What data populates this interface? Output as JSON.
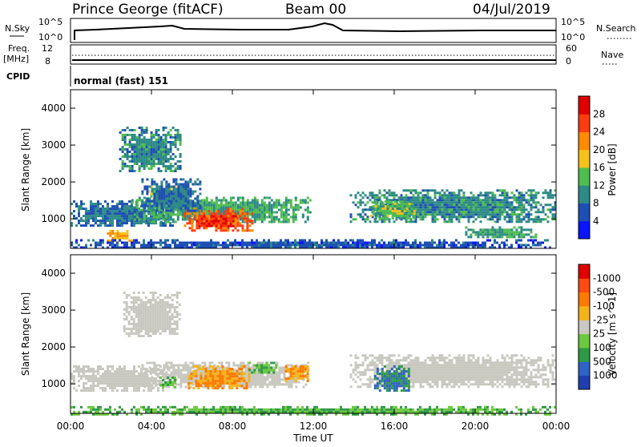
{
  "header": {
    "title": "Prince George (fitACF)",
    "beam": "Beam 00",
    "date": "04/Jul/2019"
  },
  "top_panels": {
    "nsky_label": "N.Sky",
    "nsky_ticks": [
      "10^5",
      "10^0"
    ],
    "nsearch_label": "N.Search",
    "freq_label_1": "Freq.",
    "freq_label_2": "[MHz]",
    "freq_ticks": [
      "12",
      "8"
    ],
    "nave_label": "Nave",
    "nave_ticks": [
      "60",
      "0"
    ],
    "cpid_label": "CPID",
    "cpid_value": "normal (fast) 151"
  },
  "x_axis": {
    "label": "Time UT",
    "ticks": [
      "00:00",
      "04:00",
      "08:00",
      "12:00",
      "16:00",
      "20:00",
      "00:00"
    ]
  },
  "chart_data": [
    {
      "type": "heatmap",
      "title": "",
      "xlabel": "Time UT",
      "ylabel": "Slant Range [km]",
      "x_range_hours": [
        0,
        24
      ],
      "ylim": [
        200,
        4500
      ],
      "y_ticks": [
        1000,
        2000,
        3000,
        4000
      ],
      "colorbar": {
        "label": "Power [dB]",
        "ticks": [
          4,
          8,
          12,
          16,
          20,
          24,
          28
        ],
        "colors": [
          "#0a14ff",
          "#1e4fb4",
          "#2d8a86",
          "#4fbd4f",
          "#f5c21b",
          "#ff8a00",
          "#ff3b10",
          "#e10000"
        ]
      },
      "regions": [
        {
          "t0": 0.0,
          "t1": 5.0,
          "r0": 800,
          "r1": 1500,
          "value": 8
        },
        {
          "t0": 3.0,
          "t1": 11.8,
          "r0": 900,
          "r1": 1600,
          "value": 12
        },
        {
          "t0": 5.6,
          "t1": 9.0,
          "r0": 700,
          "r1": 1300,
          "value": 24
        },
        {
          "t0": 6.2,
          "t1": 8.2,
          "r0": 800,
          "r1": 1100,
          "value": 28
        },
        {
          "t0": 3.7,
          "t1": 5.8,
          "r0": 1500,
          "r1": 1900,
          "value": 16
        },
        {
          "t0": 2.4,
          "t1": 5.4,
          "r0": 2300,
          "r1": 3500,
          "value": 10
        },
        {
          "t0": 3.5,
          "t1": 6.4,
          "r0": 1200,
          "r1": 2100,
          "value": 8
        },
        {
          "t0": 1.8,
          "t1": 3.0,
          "r0": 400,
          "r1": 700,
          "value": 20
        },
        {
          "t0": 13.8,
          "t1": 24.0,
          "r0": 900,
          "r1": 1800,
          "value": 10
        },
        {
          "t0": 14.8,
          "t1": 17.0,
          "r0": 1000,
          "r1": 1500,
          "value": 14
        },
        {
          "t0": 19.5,
          "t1": 23.0,
          "r0": 500,
          "r1": 800,
          "value": 12
        },
        {
          "t0": 0.0,
          "t1": 24.0,
          "r0": 200,
          "r1": 450,
          "value": 6
        }
      ]
    },
    {
      "type": "heatmap",
      "title": "",
      "xlabel": "Time UT",
      "ylabel": "Slant Range [km]",
      "x_range_hours": [
        0,
        24
      ],
      "ylim": [
        200,
        4500
      ],
      "y_ticks": [
        1000,
        2000,
        3000,
        4000
      ],
      "colorbar": {
        "label": "Velocity [m s^-1]",
        "ticks": [
          1000,
          500,
          100,
          25,
          -25,
          -100,
          -500,
          -1000
        ],
        "colors": [
          "#1f3fb0",
          "#2f62c5",
          "#2e9a45",
          "#6cc83e",
          "#c8c8c0",
          "#f5b31b",
          "#ff7a00",
          "#ff4a10",
          "#e00000"
        ]
      },
      "regions": [
        {
          "t0": 0.0,
          "t1": 4.8,
          "r0": 800,
          "r1": 1500,
          "value": 0
        },
        {
          "t0": 3.5,
          "t1": 11.8,
          "r0": 900,
          "r1": 1600,
          "value": 0
        },
        {
          "t0": 5.8,
          "t1": 8.8,
          "r0": 900,
          "r1": 1500,
          "value": -100
        },
        {
          "t0": 10.6,
          "t1": 11.8,
          "r0": 1100,
          "r1": 1500,
          "value": -100
        },
        {
          "t0": 4.4,
          "t1": 5.2,
          "r0": 900,
          "r1": 1200,
          "value": 100
        },
        {
          "t0": 8.8,
          "t1": 10.2,
          "r0": 1300,
          "r1": 1600,
          "value": 100
        },
        {
          "t0": 2.6,
          "t1": 5.4,
          "r0": 2300,
          "r1": 3500,
          "value": 0
        },
        {
          "t0": 13.8,
          "t1": 24.0,
          "r0": 900,
          "r1": 1800,
          "value": 0
        },
        {
          "t0": 15.0,
          "t1": 16.8,
          "r0": 800,
          "r1": 1500,
          "value": 500
        },
        {
          "t0": 0.0,
          "t1": 24.0,
          "r0": 200,
          "r1": 400,
          "value": 100
        }
      ]
    }
  ]
}
